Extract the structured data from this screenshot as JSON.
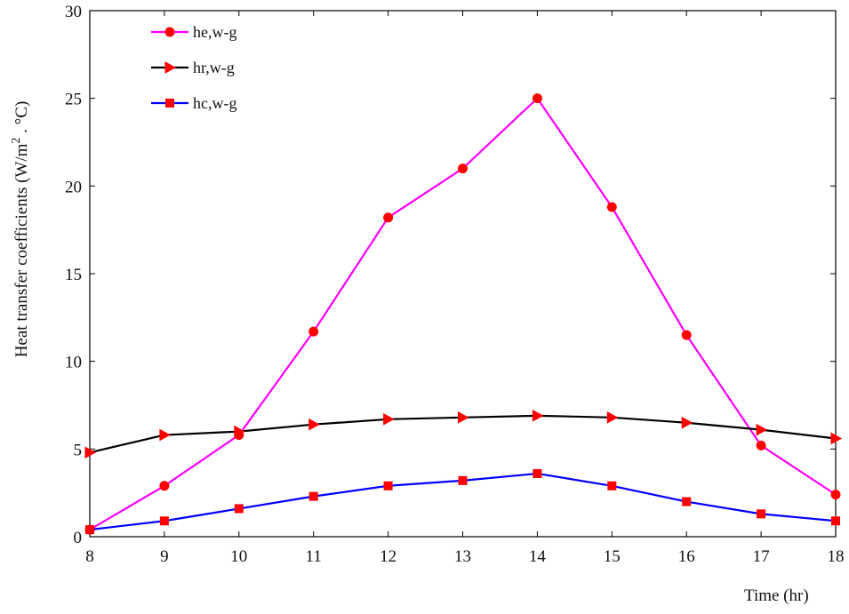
{
  "chart_data": {
    "type": "line",
    "xlabel": "Time (hr)",
    "ylabel_parts": [
      "Heat transfer coefficients (W/m",
      "2",
      " . °C)"
    ],
    "x": [
      8,
      9,
      10,
      11,
      12,
      13,
      14,
      15,
      16,
      17,
      18
    ],
    "xlim": [
      8,
      18
    ],
    "ylim": [
      0,
      30
    ],
    "xticks": [
      "8",
      "9",
      "10",
      "11",
      "12",
      "13",
      "14",
      "15",
      "16",
      "17",
      "18"
    ],
    "yticks": [
      "0",
      "5",
      "10",
      "15",
      "20",
      "25",
      "30"
    ],
    "grid": false,
    "legend_position": "top-left",
    "series": [
      {
        "name": "he,w-g",
        "color": "#ff00ff",
        "marker": "circle",
        "values": [
          0.4,
          2.9,
          5.8,
          11.7,
          18.2,
          21.0,
          25.0,
          18.8,
          11.5,
          5.2,
          2.4
        ]
      },
      {
        "name": "hr,w-g",
        "color": "#000000",
        "marker": "triangle-right",
        "values": [
          4.8,
          5.8,
          6.0,
          6.4,
          6.7,
          6.8,
          6.9,
          6.8,
          6.5,
          6.1,
          5.6
        ]
      },
      {
        "name": "hc,w-g",
        "color": "#0000ff",
        "marker": "square",
        "values": [
          0.4,
          0.9,
          1.6,
          2.3,
          2.9,
          3.2,
          3.6,
          2.9,
          2.0,
          1.3,
          0.9
        ]
      }
    ],
    "marker_color": "#ff0000"
  }
}
